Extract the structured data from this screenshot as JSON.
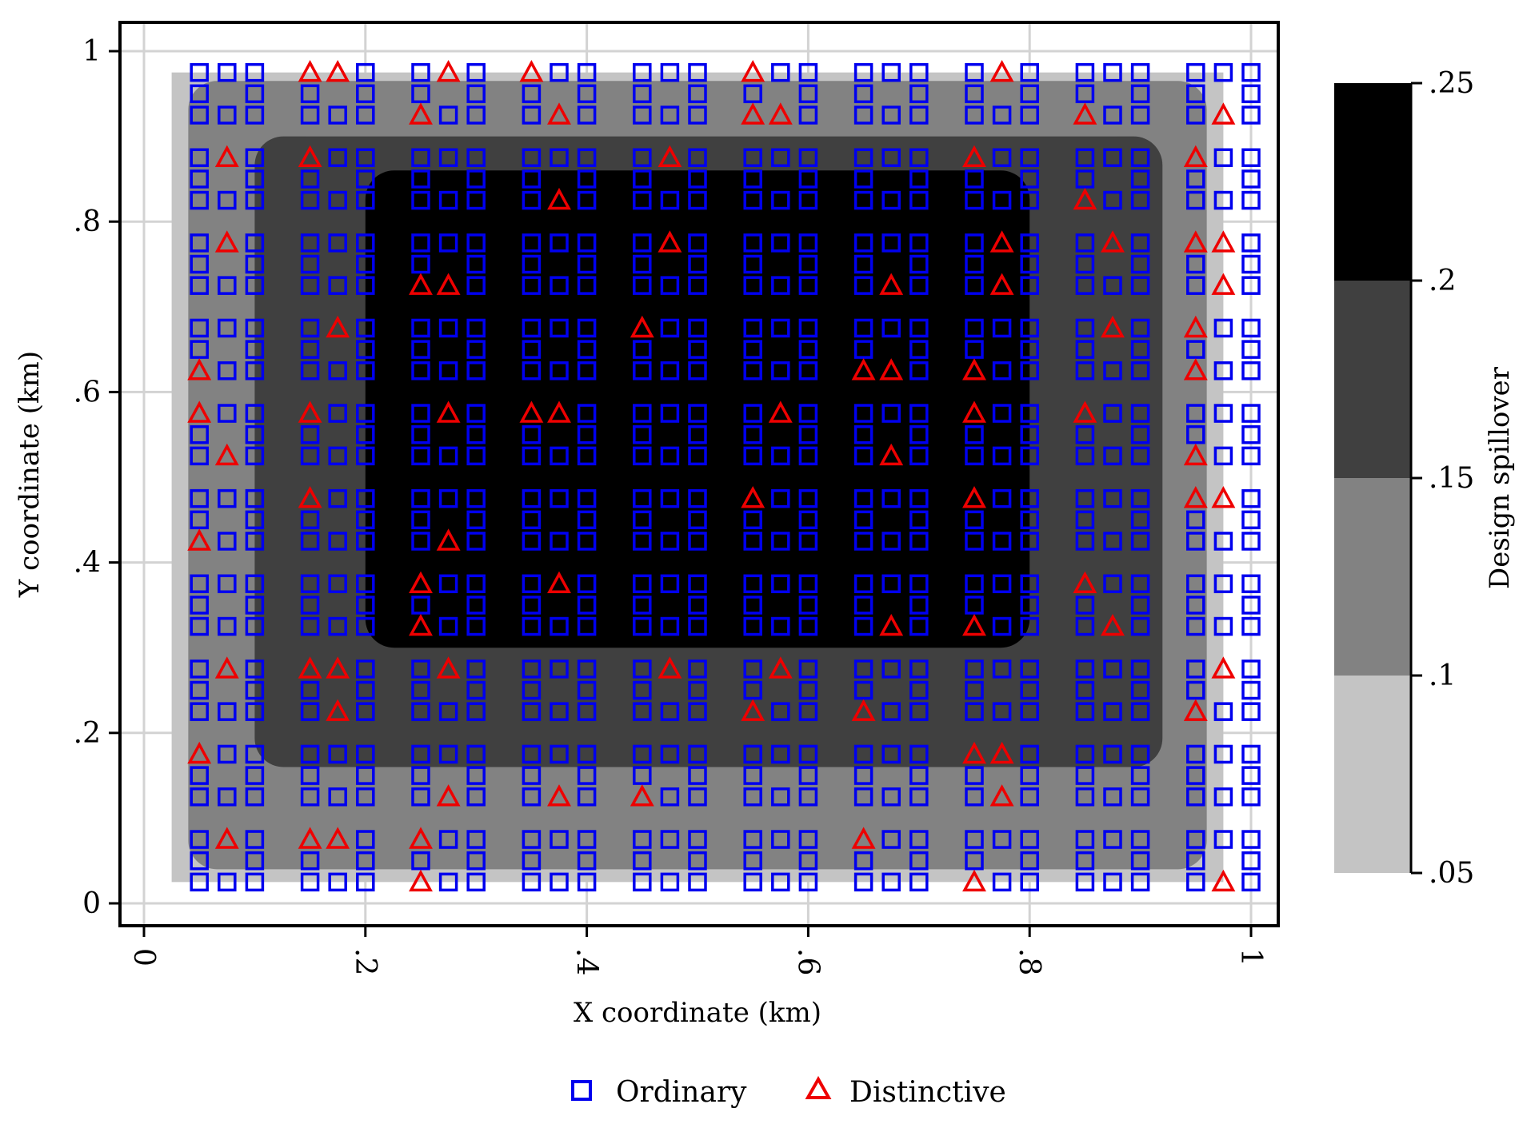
{
  "chart_data": {
    "type": "heatmap",
    "title": "",
    "xlabel": "X coordinate (km)",
    "ylabel": "Y coordinate (km)",
    "xlim": [
      0,
      1
    ],
    "ylim": [
      0,
      1
    ],
    "x_ticks": [
      0,
      0.2,
      0.4,
      0.6,
      0.8,
      1
    ],
    "x_tick_labels": [
      "0",
      ".2",
      ".4",
      ".6",
      ".8",
      "1"
    ],
    "y_ticks": [
      0,
      0.2,
      0.4,
      0.6,
      0.8,
      1
    ],
    "y_tick_labels": [
      "0",
      ".2",
      ".4",
      ".6",
      ".8",
      "1"
    ],
    "grid": true,
    "colorbar": {
      "label": "Design spillover",
      "ticks": [
        0.05,
        0.1,
        0.15,
        0.2,
        0.25
      ],
      "tick_labels": [
        ".05",
        ".1",
        ".15",
        ".2",
        ".25"
      ],
      "bins": [
        {
          "range": [
            0.05,
            0.1
          ],
          "color": "#c4c4c4"
        },
        {
          "range": [
            0.1,
            0.15
          ],
          "color": "#828282"
        },
        {
          "range": [
            0.15,
            0.2
          ],
          "color": "#404040"
        },
        {
          "range": [
            0.2,
            0.25
          ],
          "color": "#000000"
        }
      ]
    },
    "contour_regions": [
      {
        "level": "0.05-0.1",
        "x": [
          0.025,
          0.975
        ],
        "y": [
          0.025,
          0.975
        ]
      },
      {
        "level": "0.1-0.15",
        "x": [
          0.04,
          0.96
        ],
        "y": [
          0.04,
          0.965
        ]
      },
      {
        "level": "0.15-0.2",
        "x": [
          0.1,
          0.92
        ],
        "y": [
          0.16,
          0.9
        ]
      },
      {
        "level": "0.2-0.25",
        "x": [
          0.2,
          0.8
        ],
        "y": [
          0.3,
          0.86
        ]
      }
    ],
    "blocks": {
      "centers_x": [
        0.075,
        0.175,
        0.275,
        0.375,
        0.475,
        0.575,
        0.675,
        0.775,
        0.875,
        0.975
      ],
      "centers_y": [
        0.05,
        0.15,
        0.25,
        0.35,
        0.45,
        0.55,
        0.65,
        0.75,
        0.85,
        0.95
      ],
      "plot_positions": "perimeter of each block: 3 top, 2 middle (left/right), 3 bottom"
    },
    "series": [
      {
        "name": "Ordinary",
        "marker": "square",
        "color": "#0000ee"
      },
      {
        "name": "Distinctive",
        "marker": "triangle",
        "color": "#ee0000",
        "points": [
          [
            0.025,
            0.975
          ],
          [
            0.025,
            0.075
          ],
          [
            0.075,
            0.075
          ],
          [
            0.05,
            0.175
          ],
          [
            0.075,
            0.875
          ],
          [
            0.075,
            0.775
          ],
          [
            0.075,
            0.35
          ],
          [
            0.075,
            0.275
          ],
          [
            0.075,
            0.25
          ],
          [
            0.05,
            0.425
          ],
          [
            0.075,
            0.45
          ],
          [
            0.05,
            0.575
          ],
          [
            0.075,
            0.525
          ],
          [
            0.05,
            0.625
          ],
          [
            0.15,
            0.975
          ],
          [
            0.175,
            0.975
          ],
          [
            0.15,
            0.875
          ],
          [
            0.175,
            0.85
          ],
          [
            0.125,
            0.725
          ],
          [
            0.125,
            0.675
          ],
          [
            0.175,
            0.675
          ],
          [
            0.175,
            0.65
          ],
          [
            0.125,
            0.625
          ],
          [
            0.15,
            0.575
          ],
          [
            0.175,
            0.55
          ],
          [
            0.15,
            0.475
          ],
          [
            0.125,
            0.375
          ],
          [
            0.15,
            0.275
          ],
          [
            0.175,
            0.275
          ],
          [
            0.125,
            0.25
          ],
          [
            0.175,
            0.225
          ],
          [
            0.125,
            0.175
          ],
          [
            0.15,
            0.075
          ],
          [
            0.175,
            0.075
          ],
          [
            0.175,
            0.05
          ],
          [
            0.225,
            0.975
          ],
          [
            0.275,
            0.975
          ],
          [
            0.275,
            0.95
          ],
          [
            0.25,
            0.925
          ],
          [
            0.225,
            0.775
          ],
          [
            0.225,
            0.75
          ],
          [
            0.275,
            0.75
          ],
          [
            0.25,
            0.725
          ],
          [
            0.275,
            0.725
          ],
          [
            0.225,
            0.675
          ],
          [
            0.225,
            0.575
          ],
          [
            0.275,
            0.575
          ],
          [
            0.275,
            0.55
          ],
          [
            0.225,
            0.525
          ],
          [
            0.225,
            0.45
          ],
          [
            0.225,
            0.425
          ],
          [
            0.275,
            0.425
          ],
          [
            0.25,
            0.375
          ],
          [
            0.25,
            0.325
          ],
          [
            0.275,
            0.275
          ],
          [
            0.225,
            0.225
          ],
          [
            0.275,
            0.125
          ],
          [
            0.25,
            0.075
          ],
          [
            0.25,
            0.025
          ],
          [
            0.325,
            0.975
          ],
          [
            0.35,
            0.975
          ],
          [
            0.325,
            0.95
          ],
          [
            0.375,
            0.925
          ],
          [
            0.325,
            0.825
          ],
          [
            0.375,
            0.825
          ],
          [
            0.325,
            0.55
          ],
          [
            0.35,
            0.575
          ],
          [
            0.375,
            0.575
          ],
          [
            0.325,
            0.35
          ],
          [
            0.375,
            0.375
          ],
          [
            0.375,
            0.125
          ],
          [
            0.375,
            0.05
          ],
          [
            0.425,
            0.875
          ],
          [
            0.475,
            0.875
          ],
          [
            0.425,
            0.85
          ],
          [
            0.475,
            0.85
          ],
          [
            0.475,
            0.775
          ],
          [
            0.425,
            0.75
          ],
          [
            0.425,
            0.675
          ],
          [
            0.45,
            0.675
          ],
          [
            0.425,
            0.475
          ],
          [
            0.425,
            0.45
          ],
          [
            0.425,
            0.325
          ],
          [
            0.475,
            0.275
          ],
          [
            0.425,
            0.125
          ],
          [
            0.45,
            0.125
          ],
          [
            0.425,
            0.075
          ],
          [
            0.525,
            0.975
          ],
          [
            0.55,
            0.975
          ],
          [
            0.525,
            0.95
          ],
          [
            0.55,
            0.925
          ],
          [
            0.575,
            0.925
          ],
          [
            0.525,
            0.85
          ],
          [
            0.525,
            0.675
          ],
          [
            0.575,
            0.575
          ],
          [
            0.525,
            0.525
          ],
          [
            0.525,
            0.475
          ],
          [
            0.55,
            0.475
          ],
          [
            0.525,
            0.275
          ],
          [
            0.575,
            0.275
          ],
          [
            0.55,
            0.225
          ],
          [
            0.575,
            0.15
          ],
          [
            0.575,
            0.05
          ],
          [
            0.525,
            0.025
          ],
          [
            0.625,
            0.975
          ],
          [
            0.625,
            0.925
          ],
          [
            0.625,
            0.825
          ],
          [
            0.625,
            0.75
          ],
          [
            0.675,
            0.725
          ],
          [
            0.65,
            0.625
          ],
          [
            0.675,
            0.625
          ],
          [
            0.675,
            0.525
          ],
          [
            0.625,
            0.45
          ],
          [
            0.625,
            0.35
          ],
          [
            0.675,
            0.325
          ],
          [
            0.625,
            0.225
          ],
          [
            0.65,
            0.225
          ],
          [
            0.625,
            0.125
          ],
          [
            0.625,
            0.075
          ],
          [
            0.65,
            0.075
          ],
          [
            0.675,
            0.05
          ],
          [
            0.725,
            0.975
          ],
          [
            0.775,
            0.975
          ],
          [
            0.75,
            0.875
          ],
          [
            0.775,
            0.775
          ],
          [
            0.725,
            0.725
          ],
          [
            0.775,
            0.725
          ],
          [
            0.775,
            0.65
          ],
          [
            0.75,
            0.625
          ],
          [
            0.75,
            0.575
          ],
          [
            0.775,
            0.55
          ],
          [
            0.75,
            0.475
          ],
          [
            0.725,
            0.45
          ],
          [
            0.725,
            0.425
          ],
          [
            0.75,
            0.325
          ],
          [
            0.725,
            0.25
          ],
          [
            0.75,
            0.175
          ],
          [
            0.775,
            0.175
          ],
          [
            0.775,
            0.15
          ],
          [
            0.725,
            0.125
          ],
          [
            0.775,
            0.125
          ],
          [
            0.75,
            0.025
          ],
          [
            0.875,
            0.95
          ],
          [
            0.85,
            0.925
          ],
          [
            0.825,
            0.85
          ],
          [
            0.85,
            0.825
          ],
          [
            0.825,
            0.775
          ],
          [
            0.875,
            0.775
          ],
          [
            0.875,
            0.675
          ],
          [
            0.85,
            0.575
          ],
          [
            0.825,
            0.525
          ],
          [
            0.825,
            0.425
          ],
          [
            0.85,
            0.375
          ],
          [
            0.825,
            0.325
          ],
          [
            0.875,
            0.325
          ],
          [
            0.825,
            0.15
          ],
          [
            0.975,
            0.925
          ],
          [
            0.95,
            0.875
          ],
          [
            0.95,
            0.775
          ],
          [
            0.975,
            0.775
          ],
          [
            0.975,
            0.725
          ],
          [
            0.925,
            0.675
          ],
          [
            0.95,
            0.675
          ],
          [
            0.975,
            0.65
          ],
          [
            0.95,
            0.625
          ],
          [
            0.95,
            0.525
          ],
          [
            0.95,
            0.475
          ],
          [
            0.975,
            0.475
          ],
          [
            0.925,
            0.425
          ],
          [
            0.925,
            0.375
          ],
          [
            0.975,
            0.275
          ],
          [
            0.925,
            0.225
          ],
          [
            0.95,
            0.225
          ],
          [
            0.925,
            0.15
          ],
          [
            0.925,
            0.075
          ],
          [
            0.925,
            0.025
          ],
          [
            0.975,
            0.025
          ]
        ]
      }
    ],
    "legend": {
      "position": "bottom",
      "entries": [
        "Ordinary",
        "Distinctive"
      ]
    }
  }
}
